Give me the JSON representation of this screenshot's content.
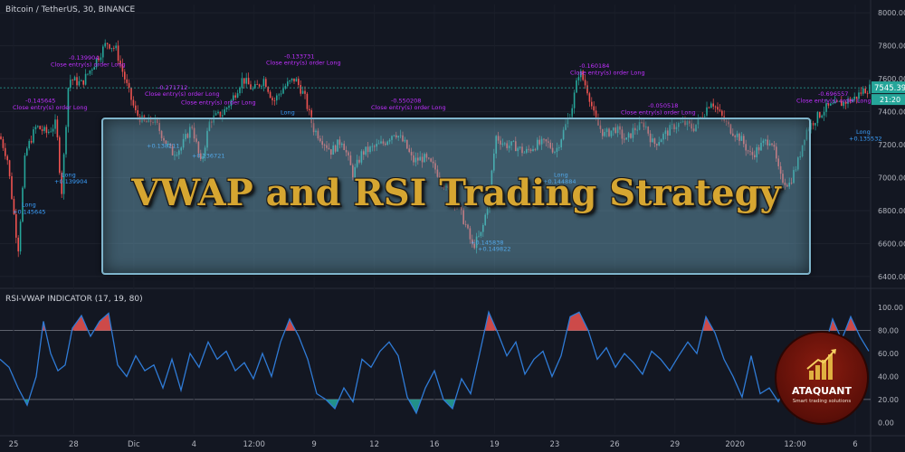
{
  "header": {
    "symbol": "Bitcoin / TetherUS, 30, BINANCE",
    "indicator": "RSI-VWAP INDICATOR (17, 19, 80)"
  },
  "banner": {
    "title": "VWAP and RSI Trading Strategy"
  },
  "logo": {
    "name": "ATAQUANT",
    "tagline": "Smart trading solutions"
  },
  "price_scale": {
    "last_price": "7545.39",
    "countdown": "21:20"
  },
  "colors": {
    "background": "#131722",
    "up": "#26a69a",
    "down": "#ef5350",
    "rsi_line": "#2f7bd6",
    "overbought": "#ef5350",
    "oversold": "#26a69a",
    "exit_label": "#c030ff",
    "long_label": "#3aa0ff",
    "price_line": "#26a69a"
  },
  "chart_data": [
    {
      "type": "candlestick",
      "title": "Bitcoin / TetherUS, 30, BINANCE",
      "ylim": [
        6350,
        8050
      ],
      "y_ticks": [
        "8000.00",
        "7800.00",
        "7600.00",
        "7400.00",
        "7200.00",
        "7000.00",
        "6800.00",
        "6600.00",
        "6400.00"
      ],
      "y_tick_values": [
        8000,
        7800,
        7600,
        7400,
        7200,
        7000,
        6800,
        6600,
        6400
      ],
      "x_ticks": [
        "25",
        "28",
        "Dic",
        "4",
        "12:00",
        "9",
        "12",
        "16",
        "19",
        "23",
        "26",
        "29",
        "2020",
        "12:00",
        "6"
      ],
      "price_path": [
        [
          0,
          7250
        ],
        [
          8,
          7120
        ],
        [
          20,
          6560
        ],
        [
          28,
          7150
        ],
        [
          40,
          7310
        ],
        [
          52,
          7270
        ],
        [
          62,
          7330
        ],
        [
          68,
          6900
        ],
        [
          76,
          7600
        ],
        [
          90,
          7570
        ],
        [
          104,
          7690
        ],
        [
          118,
          7820
        ],
        [
          128,
          7780
        ],
        [
          140,
          7560
        ],
        [
          150,
          7390
        ],
        [
          160,
          7330
        ],
        [
          170,
          7350
        ],
        [
          180,
          7250
        ],
        [
          190,
          7150
        ],
        [
          200,
          7180
        ],
        [
          212,
          7320
        ],
        [
          222,
          7080
        ],
        [
          232,
          7350
        ],
        [
          246,
          7390
        ],
        [
          256,
          7470
        ],
        [
          268,
          7600
        ],
        [
          280,
          7530
        ],
        [
          292,
          7600
        ],
        [
          302,
          7460
        ],
        [
          314,
          7550
        ],
        [
          326,
          7600
        ],
        [
          336,
          7500
        ],
        [
          346,
          7300
        ],
        [
          356,
          7230
        ],
        [
          366,
          7160
        ],
        [
          378,
          7230
        ],
        [
          390,
          7020
        ],
        [
          400,
          7150
        ],
        [
          412,
          7180
        ],
        [
          424,
          7210
        ],
        [
          436,
          7280
        ],
        [
          448,
          7200
        ],
        [
          456,
          7100
        ],
        [
          468,
          7120
        ],
        [
          480,
          7060
        ],
        [
          492,
          6950
        ],
        [
          504,
          6850
        ],
        [
          514,
          6720
        ],
        [
          522,
          6580
        ],
        [
          532,
          6660
        ],
        [
          540,
          6870
        ],
        [
          548,
          7250
        ],
        [
          558,
          7200
        ],
        [
          570,
          7190
        ],
        [
          580,
          7150
        ],
        [
          592,
          7200
        ],
        [
          604,
          7210
        ],
        [
          614,
          7160
        ],
        [
          624,
          7300
        ],
        [
          632,
          7430
        ],
        [
          640,
          7650
        ],
        [
          650,
          7520
        ],
        [
          658,
          7340
        ],
        [
          668,
          7260
        ],
        [
          680,
          7300
        ],
        [
          692,
          7220
        ],
        [
          700,
          7290
        ],
        [
          712,
          7330
        ],
        [
          722,
          7200
        ],
        [
          734,
          7260
        ],
        [
          746,
          7320
        ],
        [
          756,
          7330
        ],
        [
          766,
          7300
        ],
        [
          776,
          7380
        ],
        [
          786,
          7470
        ],
        [
          796,
          7380
        ],
        [
          806,
          7300
        ],
        [
          818,
          7240
        ],
        [
          830,
          7130
        ],
        [
          842,
          7200
        ],
        [
          852,
          7240
        ],
        [
          862,
          7000
        ],
        [
          872,
          6960
        ],
        [
          882,
          7100
        ],
        [
          890,
          7280
        ],
        [
          900,
          7350
        ],
        [
          912,
          7420
        ],
        [
          924,
          7440
        ],
        [
          934,
          7460
        ],
        [
          944,
          7480
        ],
        [
          954,
          7530
        ],
        [
          962,
          7545
        ]
      ],
      "annotations": [
        {
          "text": "-0.145645",
          "kind": "exit",
          "x": 28,
          "y": 7455
        },
        {
          "text": "Close entry(s) order Long",
          "kind": "exit",
          "x": 14,
          "y": 7415
        },
        {
          "text": "Long",
          "kind": "long",
          "x": 24,
          "y": 6825
        },
        {
          "text": "+0.145645",
          "kind": "long",
          "x": 14,
          "y": 6780
        },
        {
          "text": "Long",
          "kind": "long",
          "x": 68,
          "y": 7005
        },
        {
          "text": "+0.139904",
          "kind": "long",
          "x": 60,
          "y": 6965
        },
        {
          "text": "-0.139904",
          "kind": "exit",
          "x": 76,
          "y": 7715
        },
        {
          "text": "Close entry(s) order Long",
          "kind": "exit",
          "x": 56,
          "y": 7675
        },
        {
          "text": "-0.271712",
          "kind": "exit",
          "x": 174,
          "y": 7535
        },
        {
          "text": "Close entry(s) order Long",
          "kind": "exit",
          "x": 160,
          "y": 7495
        },
        {
          "text": "Close entry(s) order Long",
          "kind": "exit",
          "x": 200,
          "y": 7445
        },
        {
          "text": "+0.138211",
          "kind": "long",
          "x": 162,
          "y": 7180
        },
        {
          "text": "+0.136721",
          "kind": "long",
          "x": 212,
          "y": 7120
        },
        {
          "text": "-0.133731",
          "kind": "exit",
          "x": 314,
          "y": 7725
        },
        {
          "text": "Close entry(s) order Long",
          "kind": "exit",
          "x": 294,
          "y": 7685
        },
        {
          "text": "Long",
          "kind": "long",
          "x": 310,
          "y": 7385
        },
        {
          "text": "-0.550208",
          "kind": "exit",
          "x": 432,
          "y": 7455
        },
        {
          "text": "Close entry(s) order Long",
          "kind": "exit",
          "x": 410,
          "y": 7415
        },
        {
          "text": "-0.160184",
          "kind": "exit",
          "x": 640,
          "y": 7665
        },
        {
          "text": "Close entry(s) order Long",
          "kind": "exit",
          "x": 630,
          "y": 7625
        },
        {
          "text": "-0.050518",
          "kind": "exit",
          "x": 716,
          "y": 7425
        },
        {
          "text": "Close entry(s) order Long",
          "kind": "exit",
          "x": 686,
          "y": 7385
        },
        {
          "text": "Long",
          "kind": "long",
          "x": 612,
          "y": 7005
        },
        {
          "text": "+0.144884",
          "kind": "long",
          "x": 600,
          "y": 6965
        },
        {
          "text": "+0.145838",
          "kind": "long",
          "x": 520,
          "y": 6595
        },
        {
          "text": "+0.149822",
          "kind": "long",
          "x": 528,
          "y": 6555
        },
        {
          "text": "-0.696557",
          "kind": "exit",
          "x": 904,
          "y": 7495
        },
        {
          "text": "Close entry(s) order Long",
          "kind": "exit",
          "x": 880,
          "y": 7455
        },
        {
          "text": "Long",
          "kind": "long",
          "x": 946,
          "y": 7265
        },
        {
          "text": "+0.135532",
          "kind": "long",
          "x": 938,
          "y": 7225
        }
      ]
    },
    {
      "type": "line",
      "title": "RSI-VWAP INDICATOR (17, 19, 80)",
      "ylim": [
        -10,
        108
      ],
      "y_ticks": [
        "100.00",
        "80.00",
        "60.00",
        "40.00",
        "20.00",
        "0.00"
      ],
      "y_tick_values": [
        100,
        80,
        60,
        40,
        20,
        0
      ],
      "overbought": 80,
      "oversold": 20,
      "series": [
        {
          "x": [
            0,
            10,
            20,
            30,
            40,
            48,
            56,
            64,
            72,
            80,
            90,
            100,
            110,
            120,
            130,
            140,
            150,
            160,
            170,
            180,
            190,
            200,
            210,
            220,
            230,
            240,
            250,
            260,
            270,
            280,
            290,
            300,
            310,
            320,
            330,
            340,
            350,
            360,
            370,
            380,
            390,
            400,
            410,
            420,
            430,
            440,
            450,
            460,
            470,
            480,
            490,
            500,
            510,
            520,
            530,
            540,
            550,
            560,
            570,
            580,
            590,
            600,
            610,
            620,
            630,
            640,
            650,
            660,
            670,
            680,
            690,
            700,
            710,
            720,
            730,
            740,
            750,
            760,
            770,
            780,
            790,
            800,
            810,
            820,
            830,
            840,
            850,
            860,
            870,
            880,
            890,
            900,
            910,
            920,
            930,
            940,
            950,
            960
          ],
          "values": [
            55,
            48,
            30,
            15,
            40,
            88,
            60,
            45,
            50,
            82,
            93,
            75,
            88,
            95,
            50,
            40,
            58,
            45,
            50,
            30,
            55,
            28,
            60,
            48,
            70,
            55,
            62,
            45,
            52,
            38,
            60,
            40,
            70,
            90,
            75,
            55,
            25,
            20,
            12,
            30,
            18,
            55,
            48,
            62,
            70,
            58,
            22,
            8,
            30,
            45,
            20,
            12,
            38,
            25,
            60,
            96,
            78,
            58,
            70,
            42,
            55,
            62,
            40,
            58,
            92,
            96,
            80,
            55,
            65,
            48,
            60,
            52,
            42,
            62,
            55,
            45,
            58,
            70,
            60,
            92,
            78,
            55,
            40,
            22,
            58,
            25,
            30,
            18,
            35,
            12,
            45,
            50,
            62,
            90,
            72,
            92,
            75,
            62
          ]
        }
      ],
      "annotations": []
    }
  ]
}
